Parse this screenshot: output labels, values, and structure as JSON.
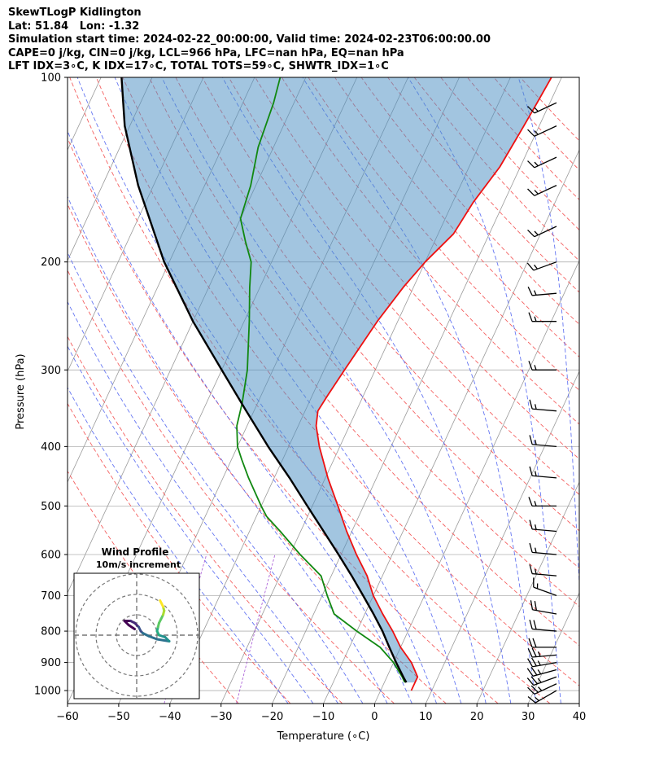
{
  "title_lines": [
    "SkewTLogP Kidlington",
    "Lat: 51.84   Lon: -1.32",
    "Simulation start time: 2024-02-22_00:00:00, Valid time: 2024-02-23T06:00:00.00",
    "CAPE=0 j/kg, CIN=0 j/kg, LCL=966 hPa, LFC=nan hPa, EQ=nan hPa",
    "LFT IDX=3∘C, K IDX=17∘C, TOTAL TOTS=59∘C, SHWTR_IDX=1∘C"
  ],
  "chart_data": {
    "type": "skewt-logp",
    "xlabel": "Temperature (∘C)",
    "ylabel": "Pressure (hPa)",
    "xlim": [
      -60,
      40
    ],
    "ylim": [
      1050,
      100
    ],
    "xticks": [
      -60,
      -50,
      -40,
      -30,
      -20,
      -10,
      0,
      10,
      20,
      30,
      40
    ],
    "yticks": [
      100,
      200,
      300,
      400,
      500,
      600,
      700,
      800,
      900,
      1000
    ],
    "grid": true,
    "series": [
      {
        "role": "temperature",
        "color": "#ee1111",
        "points": [
          [
            1000,
            6
          ],
          [
            950,
            6
          ],
          [
            900,
            3.5
          ],
          [
            850,
            0
          ],
          [
            800,
            -3
          ],
          [
            750,
            -6.5
          ],
          [
            700,
            -10
          ],
          [
            650,
            -13
          ],
          [
            600,
            -17
          ],
          [
            550,
            -21
          ],
          [
            500,
            -25
          ],
          [
            450,
            -29.5
          ],
          [
            400,
            -34
          ],
          [
            370,
            -36.5
          ],
          [
            350,
            -37.5
          ],
          [
            330,
            -37
          ],
          [
            300,
            -36
          ],
          [
            250,
            -34
          ],
          [
            220,
            -32
          ],
          [
            200,
            -30
          ],
          [
            180,
            -27
          ],
          [
            160,
            -26
          ],
          [
            140,
            -24
          ],
          [
            120,
            -23
          ],
          [
            110,
            -22.5
          ],
          [
            100,
            -22
          ]
        ]
      },
      {
        "role": "dewpoint",
        "color": "#118811",
        "points": [
          [
            970,
            4
          ],
          [
            950,
            3
          ],
          [
            900,
            0
          ],
          [
            850,
            -4
          ],
          [
            800,
            -10
          ],
          [
            750,
            -16
          ],
          [
            700,
            -19
          ],
          [
            650,
            -22
          ],
          [
            600,
            -28
          ],
          [
            550,
            -34
          ],
          [
            520,
            -38
          ],
          [
            500,
            -40
          ],
          [
            450,
            -45
          ],
          [
            420,
            -48
          ],
          [
            400,
            -50
          ],
          [
            370,
            -52
          ],
          [
            340,
            -53
          ],
          [
            300,
            -55
          ],
          [
            250,
            -59
          ],
          [
            220,
            -62
          ],
          [
            200,
            -64
          ],
          [
            185,
            -67
          ],
          [
            170,
            -70
          ],
          [
            150,
            -71
          ],
          [
            130,
            -73
          ],
          [
            110,
            -74
          ],
          [
            100,
            -75
          ]
        ]
      },
      {
        "role": "parcel",
        "color": "#000000",
        "points": [
          [
            970,
            4.3
          ],
          [
            950,
            3.2
          ],
          [
            900,
            0.5
          ],
          [
            850,
            -2.2
          ],
          [
            800,
            -5
          ],
          [
            750,
            -8.3
          ],
          [
            700,
            -12
          ],
          [
            650,
            -16
          ],
          [
            600,
            -20.5
          ],
          [
            550,
            -25.5
          ],
          [
            500,
            -31
          ],
          [
            450,
            -37
          ],
          [
            400,
            -44
          ],
          [
            350,
            -51.5
          ],
          [
            300,
            -60
          ],
          [
            250,
            -70
          ],
          [
            200,
            -81
          ],
          [
            150,
            -93
          ],
          [
            120,
            -101
          ],
          [
            100,
            -106
          ]
        ]
      }
    ],
    "cape_cin_shading": {
      "color": "#4d8fc3",
      "opacity": 0.52
    },
    "background_lines": [
      {
        "name": "isotherms",
        "color": "#9a9a9a"
      },
      {
        "name": "dry-adiabats",
        "color": "#f46060"
      },
      {
        "name": "moist-adiabats",
        "color": "#4a5ef0"
      },
      {
        "name": "mixing-ratio",
        "color": "#9a3fd0"
      }
    ],
    "wind_barbs": [
      {
        "p": 1000,
        "speed_kt": 15,
        "dir_deg": 240
      },
      {
        "p": 975,
        "speed_kt": 25,
        "dir_deg": 245
      },
      {
        "p": 950,
        "speed_kt": 25,
        "dir_deg": 250
      },
      {
        "p": 925,
        "speed_kt": 25,
        "dir_deg": 255
      },
      {
        "p": 900,
        "speed_kt": 25,
        "dir_deg": 260
      },
      {
        "p": 875,
        "speed_kt": 25,
        "dir_deg": 265
      },
      {
        "p": 850,
        "speed_kt": 20,
        "dir_deg": 270
      },
      {
        "p": 800,
        "speed_kt": 20,
        "dir_deg": 275
      },
      {
        "p": 750,
        "speed_kt": 20,
        "dir_deg": 280
      },
      {
        "p": 700,
        "speed_kt": 15,
        "dir_deg": 290
      },
      {
        "p": 650,
        "speed_kt": 15,
        "dir_deg": 275
      },
      {
        "p": 600,
        "speed_kt": 15,
        "dir_deg": 275
      },
      {
        "p": 550,
        "speed_kt": 15,
        "dir_deg": 275
      },
      {
        "p": 500,
        "speed_kt": 15,
        "dir_deg": 270
      },
      {
        "p": 450,
        "speed_kt": 15,
        "dir_deg": 275
      },
      {
        "p": 400,
        "speed_kt": 15,
        "dir_deg": 275
      },
      {
        "p": 350,
        "speed_kt": 15,
        "dir_deg": 275
      },
      {
        "p": 300,
        "speed_kt": 15,
        "dir_deg": 270
      },
      {
        "p": 250,
        "speed_kt": 15,
        "dir_deg": 270
      },
      {
        "p": 225,
        "speed_kt": 15,
        "dir_deg": 265
      },
      {
        "p": 200,
        "speed_kt": 15,
        "dir_deg": 250
      },
      {
        "p": 175,
        "speed_kt": 15,
        "dir_deg": 245
      },
      {
        "p": 150,
        "speed_kt": 15,
        "dir_deg": 245
      },
      {
        "p": 135,
        "speed_kt": 15,
        "dir_deg": 245
      },
      {
        "p": 120,
        "speed_kt": 15,
        "dir_deg": 245
      },
      {
        "p": 110,
        "speed_kt": 15,
        "dir_deg": 245
      }
    ],
    "hodograph": {
      "title": "Wind Profile",
      "subtitle": "10m/s increment",
      "ring_increment_ms": 10,
      "ring_count": 3,
      "colormap": "viridis",
      "points_ms": [
        [
          -1,
          3
        ],
        [
          -4,
          5
        ],
        [
          -6,
          7
        ],
        [
          -3,
          7
        ],
        [
          -1,
          6
        ],
        [
          1,
          4
        ],
        [
          2,
          2
        ],
        [
          3,
          1
        ],
        [
          6,
          -0.5
        ],
        [
          10,
          -2
        ],
        [
          16,
          -3
        ],
        [
          14,
          -1
        ],
        [
          11,
          0
        ],
        [
          10,
          2
        ],
        [
          10.5,
          4
        ],
        [
          11,
          6
        ],
        [
          12,
          8
        ],
        [
          13,
          10
        ],
        [
          13.5,
          12
        ],
        [
          13,
          14
        ],
        [
          12,
          16
        ],
        [
          11.5,
          17
        ]
      ]
    }
  }
}
